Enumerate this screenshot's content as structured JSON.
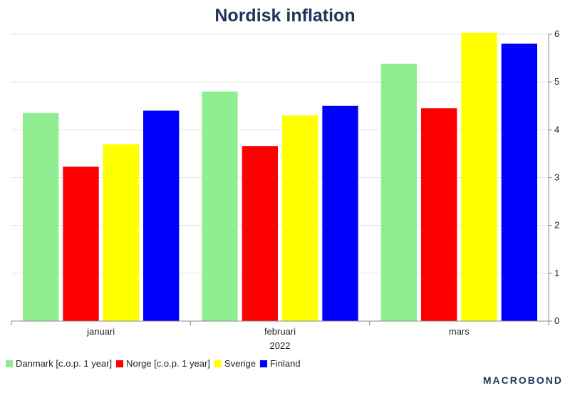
{
  "chart_data": {
    "type": "bar",
    "title": "Nordisk inflation",
    "categories": [
      "januari",
      "februari",
      "mars"
    ],
    "period_label": "2022",
    "series": [
      {
        "name": "Danmark [c.o.p. 1 year]",
        "color": "#90ee90",
        "values": [
          4.35,
          4.8,
          5.38
        ]
      },
      {
        "name": "Norge [c.o.p. 1 year]",
        "color": "#ff0000",
        "values": [
          3.23,
          3.66,
          4.45
        ]
      },
      {
        "name": "Sverige",
        "color": "#ffff00",
        "values": [
          3.7,
          4.3,
          6.03
        ]
      },
      {
        "name": "Finland",
        "color": "#0000ff",
        "values": [
          4.4,
          4.5,
          5.8
        ]
      }
    ],
    "ylim": [
      0,
      6
    ],
    "yticks": [
      0,
      1,
      2,
      3,
      4,
      5,
      6
    ],
    "y_axis_side": "right",
    "grid": true,
    "legend_position": "bottom-left"
  },
  "branding": {
    "logo_text": "MACROBOND"
  }
}
